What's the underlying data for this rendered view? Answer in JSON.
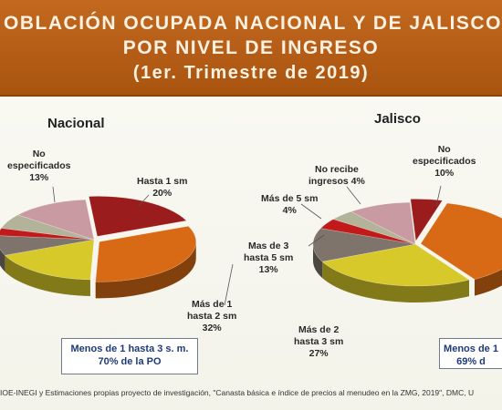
{
  "title": {
    "line1": "OBLACIÓN OCUPADA NACIONAL Y DE JALISCO",
    "line2": "POR NIVEL DE INGRESO",
    "line3": "(1er. Trimestre de 2019)"
  },
  "colors": {
    "banner": "#b85f18",
    "hasta1": "#9b1c1c",
    "masde1hasta2": "#d86a16",
    "masde2hasta3": "#d8c92a",
    "masde3hasta5": "#7e746c",
    "masde5": "#c21a1a",
    "noRecibe": "#b3b39a",
    "noEspecificados": "#c99aa2",
    "boxText": "#1f3a78"
  },
  "chart_data": [
    {
      "type": "pie",
      "title": "Nacional",
      "slices": [
        {
          "label": "Hasta 1 sm",
          "value": 20,
          "text": "20%",
          "color": "#9b1c1c"
        },
        {
          "label": "Más de 1 hasta 2 sm",
          "value": 32,
          "text": "32%",
          "color": "#d86a16"
        },
        {
          "label": "Más de 2 hasta 3 sm",
          "value": 18,
          "text": "",
          "color": "#d8c92a"
        },
        {
          "label": "Más de 3 hasta 5 sm",
          "value": 8,
          "text": "",
          "color": "#7e746c"
        },
        {
          "label": "Más de 5 sm",
          "value": 3,
          "text": "",
          "color": "#c21a1a"
        },
        {
          "label": "No recibe ingresos",
          "value": 6,
          "text": "",
          "color": "#b3b39a"
        },
        {
          "label": "No especificados",
          "value": 13,
          "text": "13%",
          "color": "#c99aa2"
        }
      ],
      "note": "Menos de  1 hasta 3 s. m.\n70% de la PO"
    },
    {
      "type": "pie",
      "title": "Jalisco",
      "slices": [
        {
          "label": "Hasta 1 sm",
          "value": 5,
          "text": "",
          "color": "#9b1c1c"
        },
        {
          "label": "Más de 1 hasta 2 sm",
          "value": 37,
          "text": "",
          "color": "#d86a16"
        },
        {
          "label": "Más de 2 hasta 3 sm",
          "value": 27,
          "text": "27%",
          "color": "#d8c92a"
        },
        {
          "label": "Mas de 3 hasta 5 sm",
          "value": 13,
          "text": "13%",
          "color": "#7e746c"
        },
        {
          "label": "Más de 5 sm",
          "value": 4,
          "text": "4%",
          "color": "#c21a1a"
        },
        {
          "label": "No recibe ingresos",
          "value": 4,
          "text": "4%",
          "color": "#b3b39a"
        },
        {
          "label": "No especificados",
          "value": 10,
          "text": "10%",
          "color": "#c99aa2"
        }
      ],
      "note": "Menos de 1\n69% d"
    }
  ],
  "labels": {
    "nac_hasta1": [
      "Hasta 1 sm",
      "20%"
    ],
    "nac_mas1": [
      "Más de 1",
      "hasta 2 sm",
      "32%"
    ],
    "nac_noesp": [
      "No",
      "especificados",
      "13%"
    ],
    "nac_box": [
      "Menos de  1 hasta 3 s. m.",
      "70% de la PO"
    ],
    "jal_noesp": [
      "No",
      "especificados",
      "10%"
    ],
    "jal_norecibe": [
      "No recibe",
      "ingresos 4%"
    ],
    "jal_mas5": [
      "Más de 5 sm",
      "4%"
    ],
    "jal_mas3": [
      "Mas de 3",
      "hasta 5 sm",
      "13%"
    ],
    "jal_mas2": [
      "Más de 2",
      "hasta 3 sm",
      "27%"
    ],
    "jal_box": [
      "Menos de 1",
      "69% d"
    ]
  },
  "source": "IOE-INEGI  y Estimaciones  propias proyecto de investigación,  \"Canasta básica e índice de precios al menudeo en la ZMG, 2019\", DMC, U"
}
